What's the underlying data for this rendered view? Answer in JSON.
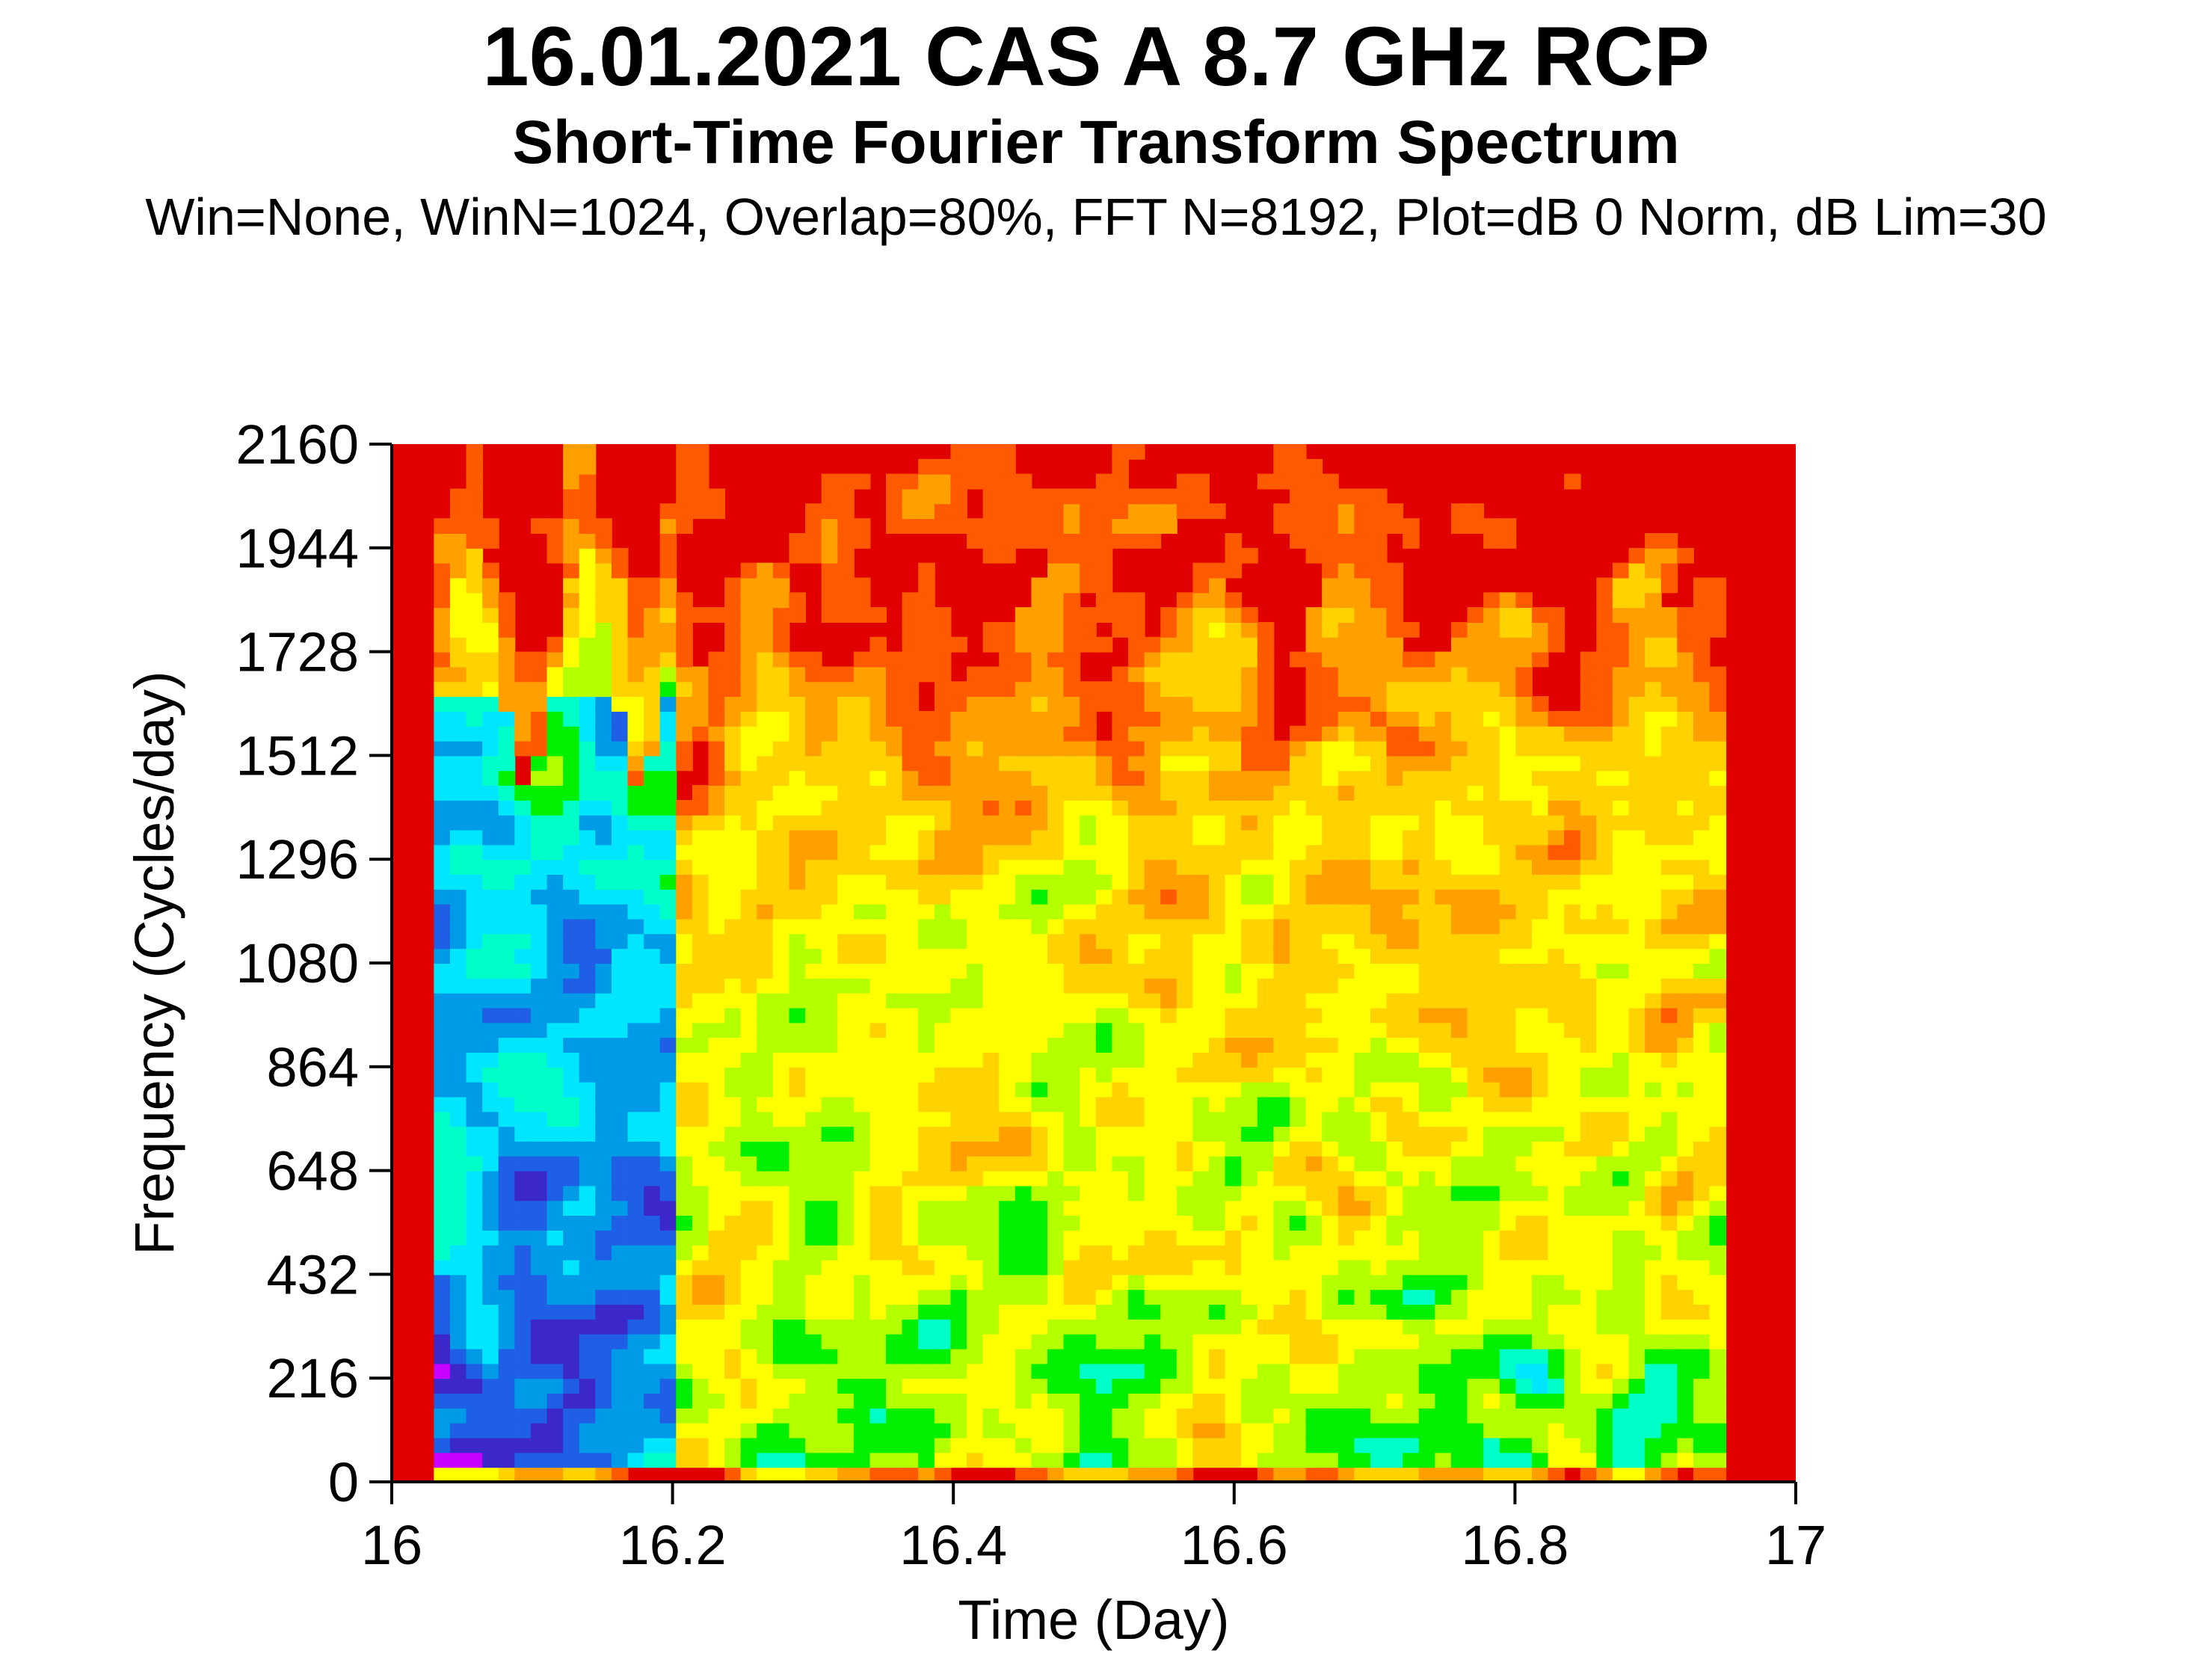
{
  "chart_data": {
    "type": "heatmap",
    "title": "16.01.2021 CAS A 8.7 GHz RCP",
    "subtitle": "Short-Time Fourier Transform Spectrum",
    "parameters": "Win=None, WinN=1024, Overlap=80%, FFT N=8192, Plot=dB 0 Norm, dB Lim=30",
    "xlabel": "Time (Day)",
    "ylabel": "Frequency (Cycles/day)",
    "xlim": [
      16,
      17
    ],
    "ylim": [
      0,
      2160
    ],
    "x_ticks": [
      16,
      16.2,
      16.4,
      16.6,
      16.8,
      17
    ],
    "x_tick_labels": [
      "16",
      "16.2",
      "16.4",
      "16.6",
      "16.8",
      "17"
    ],
    "y_ticks": [
      0,
      216,
      432,
      648,
      864,
      1080,
      1296,
      1512,
      1728,
      1944,
      2160
    ],
    "y_tick_labels": [
      "0",
      "216",
      "432",
      "648",
      "864",
      "1080",
      "1296",
      "1512",
      "1728",
      "1944",
      "2160"
    ],
    "data_extent": {
      "time_start": 16.03,
      "time_end": 16.95
    },
    "db_scale": {
      "min_db": -30,
      "max_db": 0
    },
    "colormap": [
      "#e00000",
      "#ff5a00",
      "#ffa000",
      "#ffd200",
      "#ffff00",
      "#b4ff00",
      "#00f000",
      "#00ffc8",
      "#00e6ff",
      "#009be6",
      "#1e5fe6",
      "#3c28c8",
      "#c800ff"
    ],
    "background_color": "#e00000"
  }
}
